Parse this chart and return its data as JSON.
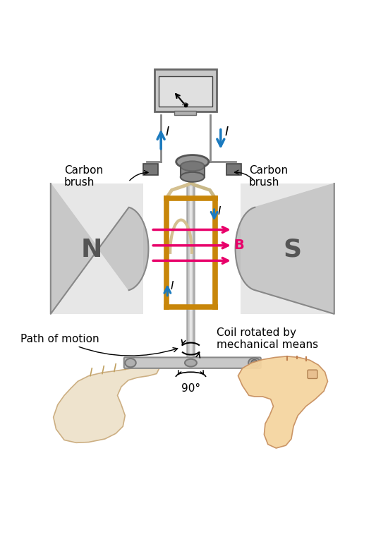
{
  "bg_color": "#ffffff",
  "coil_color": "#c8860a",
  "arrow_color": "#1a7abf",
  "B_arrow_color": "#e8006a",
  "wire_color": "#aaaaaa",
  "hand_color": "#f5d5a0",
  "hand_color_light": "#ede0c8",
  "label_N": "N",
  "label_S": "S",
  "label_B": "B",
  "label_carbon1": "Carbon\nbrush",
  "label_carbon2": "Carbon\nbrush",
  "label_path": "Path of motion",
  "label_coil": "Coil rotated by\nmechanical means",
  "label_90": "90°",
  "label_fontsize": 11,
  "small_fontsize": 10
}
